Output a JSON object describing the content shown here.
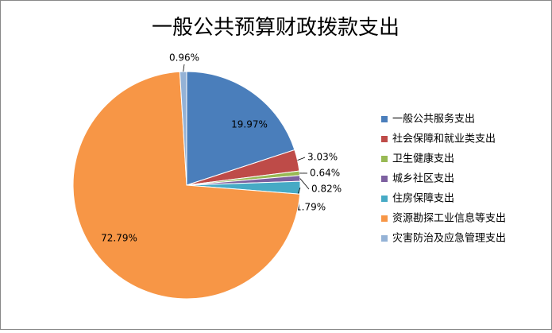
{
  "chart_data": {
    "type": "pie",
    "title": "一般公共预算财政拨款支出",
    "categories": [
      "一般公共服务支出",
      "社会保障和就业类支出",
      "卫生健康支出",
      "城乡社区支出",
      "住房保障支出",
      "资源勘探工业信息等支出",
      "灾害防治及应急管理支出"
    ],
    "values": [
      19.97,
      3.03,
      0.64,
      0.82,
      1.79,
      72.79,
      0.96
    ],
    "value_labels": [
      "19.97%",
      "3.03%",
      "0.64%",
      "0.82%",
      "1.79%",
      "72.79%",
      "0.96%"
    ],
    "colors": [
      "#4a7ebb",
      "#be4b48",
      "#98b954",
      "#7d60a0",
      "#46aac5",
      "#f79646",
      "#94b2d6"
    ],
    "legend": "right"
  }
}
